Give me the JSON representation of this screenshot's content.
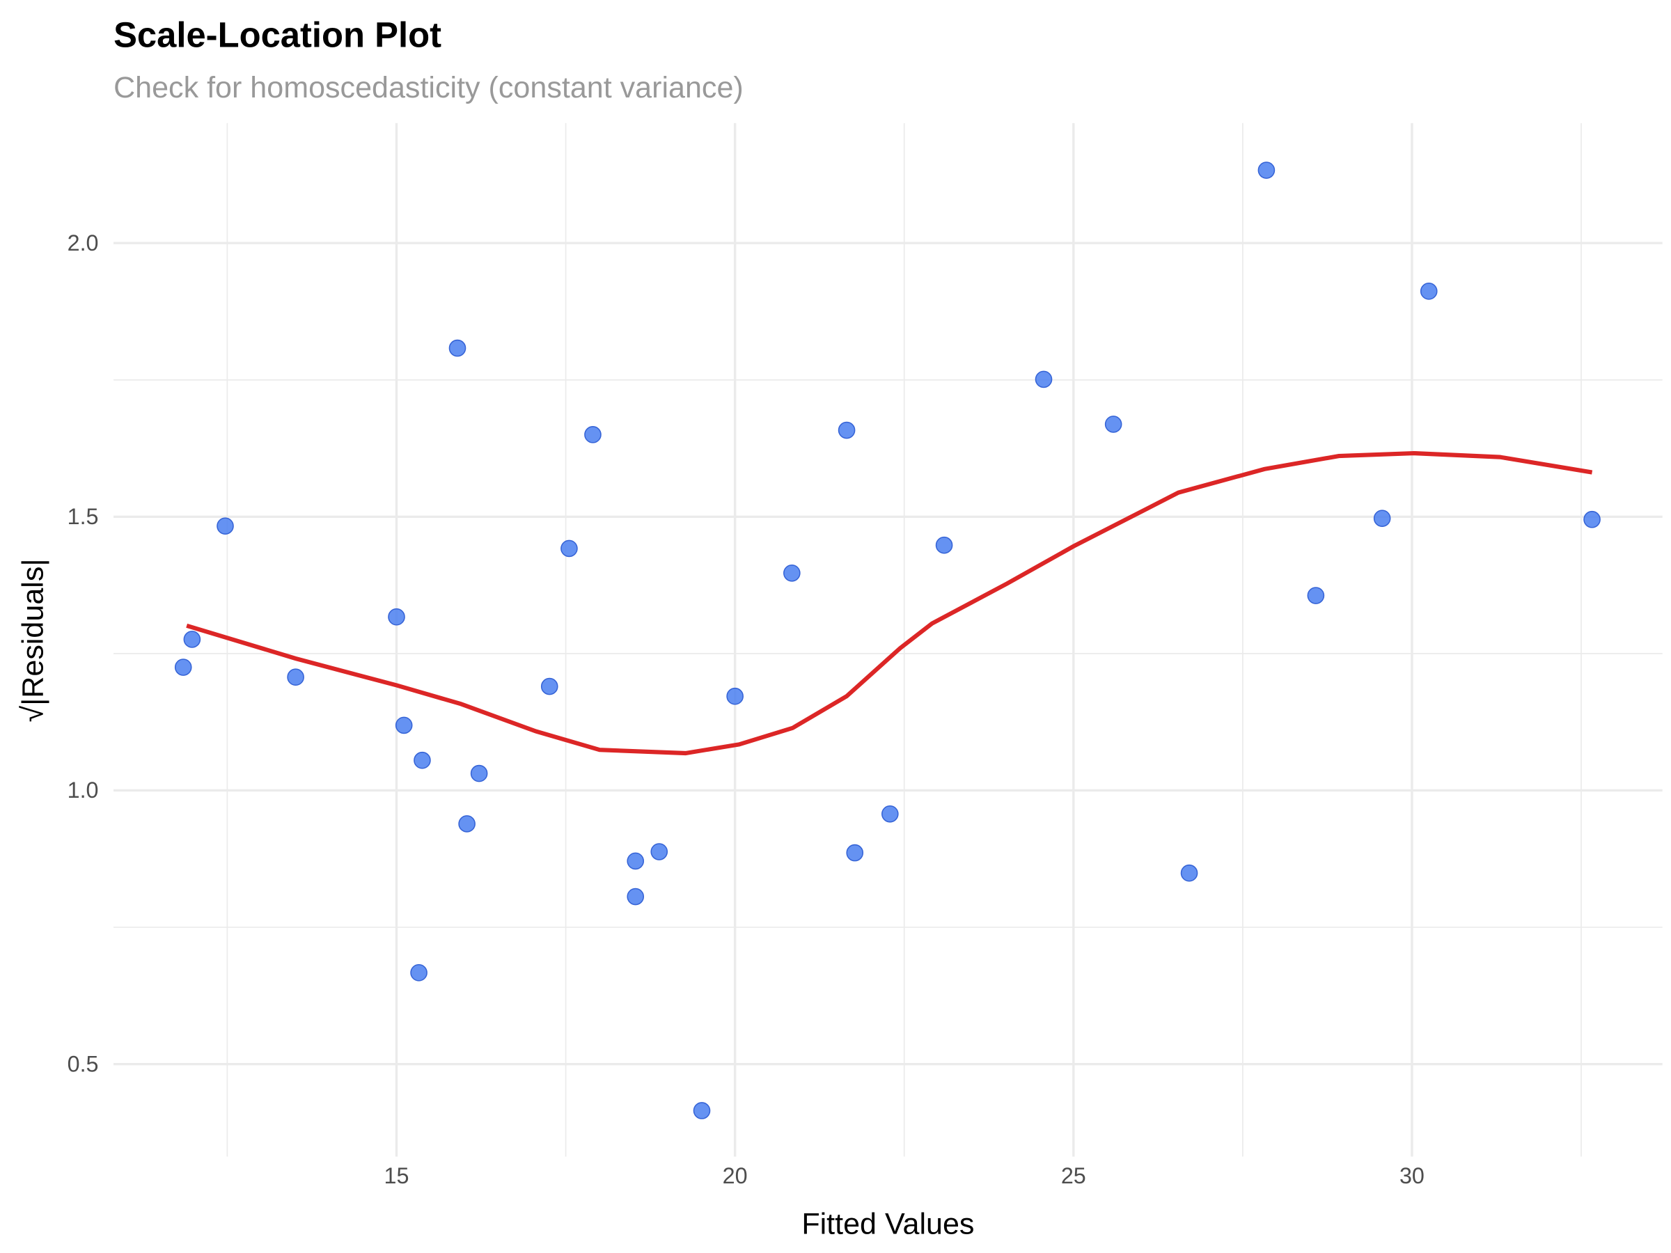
{
  "chart_data": {
    "type": "scatter",
    "title": "Scale-Location Plot",
    "subtitle": "Check for homoscedasticity (constant variance)",
    "xlabel": "Fitted Values",
    "ylabel": "√|Residuals|",
    "xlim": [
      10.82,
      33.7
    ],
    "ylim": [
      0.331,
      2.219
    ],
    "x_ticks": [
      15,
      20,
      25,
      30
    ],
    "x_tick_labels": [
      "15",
      "20",
      "25",
      "30"
    ],
    "y_ticks": [
      0.5,
      1.0,
      1.5,
      2.0
    ],
    "y_tick_labels": [
      "0.5",
      "1.0",
      "1.5",
      "2.0"
    ],
    "grid": true,
    "colors": {
      "points": "#4a7ff0",
      "smooth": "#dc2626",
      "grid": "#ebebeb"
    },
    "points": [
      [
        11.85,
        1.225
      ],
      [
        11.98,
        1.276
      ],
      [
        12.47,
        1.483
      ],
      [
        13.51,
        1.207
      ],
      [
        15.0,
        1.317
      ],
      [
        15.11,
        1.119
      ],
      [
        15.38,
        1.055
      ],
      [
        15.33,
        0.667
      ],
      [
        15.9,
        1.808
      ],
      [
        16.04,
        0.939
      ],
      [
        16.22,
        1.031
      ],
      [
        17.26,
        1.19
      ],
      [
        17.55,
        1.442
      ],
      [
        17.9,
        1.65
      ],
      [
        18.53,
        0.871
      ],
      [
        18.53,
        0.806
      ],
      [
        18.88,
        0.888
      ],
      [
        19.51,
        0.415
      ],
      [
        20.0,
        1.172
      ],
      [
        20.84,
        1.397
      ],
      [
        21.65,
        1.658
      ],
      [
        21.77,
        0.886
      ],
      [
        22.29,
        0.957
      ],
      [
        23.09,
        1.448
      ],
      [
        24.56,
        1.751
      ],
      [
        25.59,
        1.669
      ],
      [
        26.71,
        0.849
      ],
      [
        27.85,
        2.133
      ],
      [
        28.58,
        1.356
      ],
      [
        29.56,
        1.497
      ],
      [
        30.25,
        1.912
      ],
      [
        32.66,
        1.495
      ]
    ],
    "smooth_line": [
      [
        11.9,
        1.301
      ],
      [
        13.51,
        1.241
      ],
      [
        15.0,
        1.192
      ],
      [
        15.95,
        1.158
      ],
      [
        17.06,
        1.108
      ],
      [
        18.0,
        1.074
      ],
      [
        19.27,
        1.068
      ],
      [
        20.06,
        1.084
      ],
      [
        20.85,
        1.114
      ],
      [
        21.65,
        1.172
      ],
      [
        22.44,
        1.26
      ],
      [
        22.91,
        1.305
      ],
      [
        24.02,
        1.378
      ],
      [
        25.0,
        1.446
      ],
      [
        26.55,
        1.544
      ],
      [
        27.82,
        1.587
      ],
      [
        28.92,
        1.611
      ],
      [
        30.03,
        1.616
      ],
      [
        31.3,
        1.609
      ],
      [
        32.66,
        1.581
      ]
    ]
  }
}
